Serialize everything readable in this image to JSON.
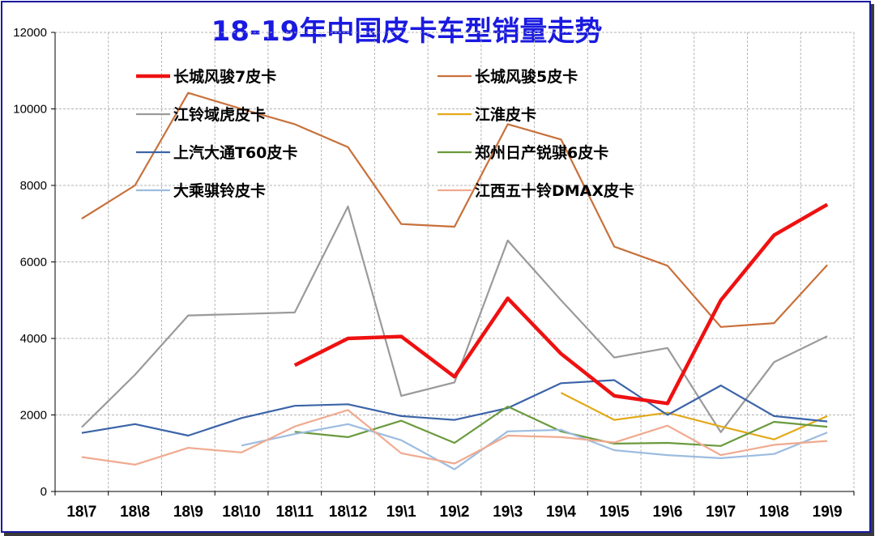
{
  "chart_data": {
    "type": "line",
    "title": "18-19年中国皮卡车型销量走势",
    "categories": [
      "18\\7",
      "18\\8",
      "18\\9",
      "18\\10",
      "18\\11",
      "18\\12",
      "19\\1",
      "19\\2",
      "19\\3",
      "19\\4",
      "19\\5",
      "19\\6",
      "19\\7",
      "19\\8",
      "19\\9"
    ],
    "ylim": [
      0,
      12000
    ],
    "yticks": [
      0,
      2000,
      4000,
      6000,
      8000,
      10000,
      12000
    ],
    "grid": true,
    "legend_position": "top",
    "series": [
      {
        "name": "长城风骏7皮卡",
        "color": "#ee1111",
        "width": 4.5,
        "values": [
          null,
          null,
          null,
          null,
          3300,
          4000,
          4050,
          3000,
          5050,
          3600,
          2500,
          2300,
          5000,
          6700,
          7500
        ]
      },
      {
        "name": "长城风骏5皮卡",
        "color": "#c8703a",
        "width": 2.2,
        "values": [
          7130,
          8000,
          10420,
          10000,
          9600,
          9000,
          6990,
          6920,
          9600,
          9200,
          6400,
          5900,
          4300,
          4400,
          5920
        ]
      },
      {
        "name": "江铃域虎皮卡",
        "color": "#9a9a9a",
        "width": 2.2,
        "values": [
          1680,
          3050,
          4600,
          4640,
          4680,
          7450,
          2500,
          2850,
          6560,
          5000,
          3500,
          3750,
          1550,
          3380,
          4060
        ]
      },
      {
        "name": "江淮皮卡",
        "color": "#e3a91a",
        "width": 2.2,
        "values": [
          null,
          null,
          null,
          null,
          null,
          null,
          null,
          null,
          null,
          2580,
          1870,
          2060,
          1700,
          1360,
          1970
        ]
      },
      {
        "name": "上汽大通T60皮卡",
        "color": "#3c64a8",
        "width": 2.2,
        "values": [
          1530,
          1760,
          1460,
          1920,
          2240,
          2280,
          1970,
          1870,
          2180,
          2830,
          2910,
          2000,
          2770,
          1970,
          1830
        ]
      },
      {
        "name": "郑州日产锐骐6皮卡",
        "color": "#6a9a3e",
        "width": 2.2,
        "values": [
          null,
          null,
          null,
          null,
          1560,
          1420,
          1850,
          1270,
          2220,
          1570,
          1250,
          1270,
          1190,
          1820,
          1690
        ]
      },
      {
        "name": "大乘骐铃皮卡",
        "color": "#9dbce0",
        "width": 2.2,
        "values": [
          null,
          null,
          null,
          1200,
          1500,
          1760,
          1340,
          580,
          1570,
          1610,
          1080,
          950,
          870,
          980,
          1540
        ]
      },
      {
        "name": "江西五十铃DMAX皮卡",
        "color": "#f0aa90",
        "width": 2.2,
        "values": [
          900,
          700,
          1140,
          1020,
          1700,
          2130,
          1000,
          730,
          1460,
          1420,
          1280,
          1720,
          950,
          1220,
          1320
        ]
      }
    ]
  }
}
